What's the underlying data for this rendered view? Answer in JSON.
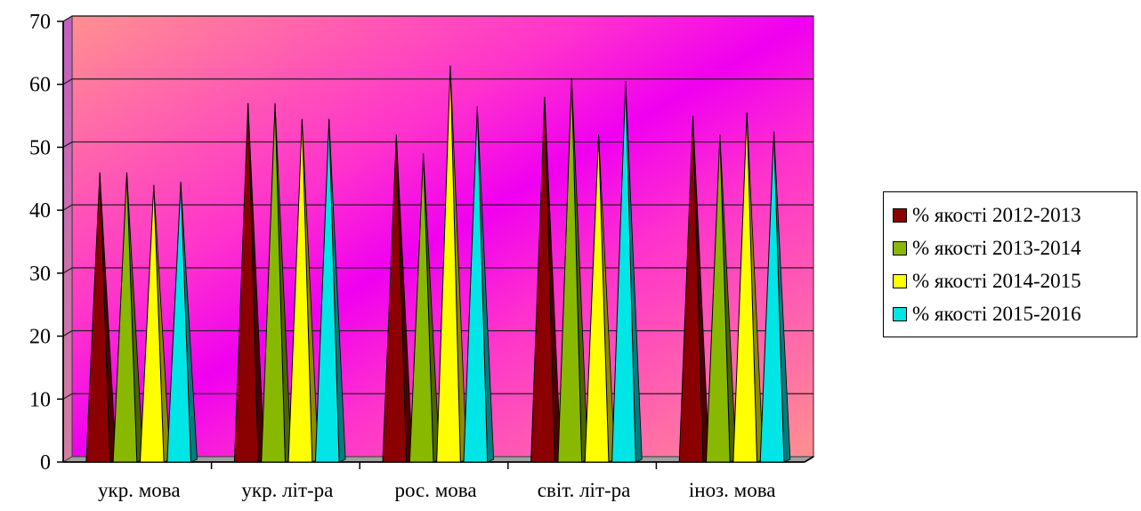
{
  "chart_data": {
    "type": "bar",
    "style": "3d-cone",
    "categories": [
      "укр. мова",
      "укр. літ-ра",
      "рос. мова",
      "світ. літ-ра",
      "іноз. мова"
    ],
    "series": [
      {
        "name": "% якості 2012-2013",
        "color": "#8B0000",
        "values": [
          46,
          57,
          52,
          58,
          55
        ]
      },
      {
        "name": "% якості 2013-2014",
        "color": "#88B800",
        "values": [
          46,
          57,
          49,
          61,
          52
        ]
      },
      {
        "name": "% якості 2014-2015",
        "color": "#FFFF00",
        "values": [
          44,
          54.5,
          63,
          52,
          55.5
        ]
      },
      {
        "name": "% якості 2015-2016",
        "color": "#00E5E5",
        "values": [
          44.5,
          54.5,
          56.5,
          60.5,
          52.5
        ]
      }
    ],
    "yticks": [
      "0",
      "10",
      "20",
      "30",
      "40",
      "50",
      "60",
      "70"
    ],
    "ylim": [
      0,
      70
    ],
    "grid": true,
    "legend_position": "right",
    "background_gradient": [
      "#FF8888",
      "#FF00FF"
    ]
  }
}
